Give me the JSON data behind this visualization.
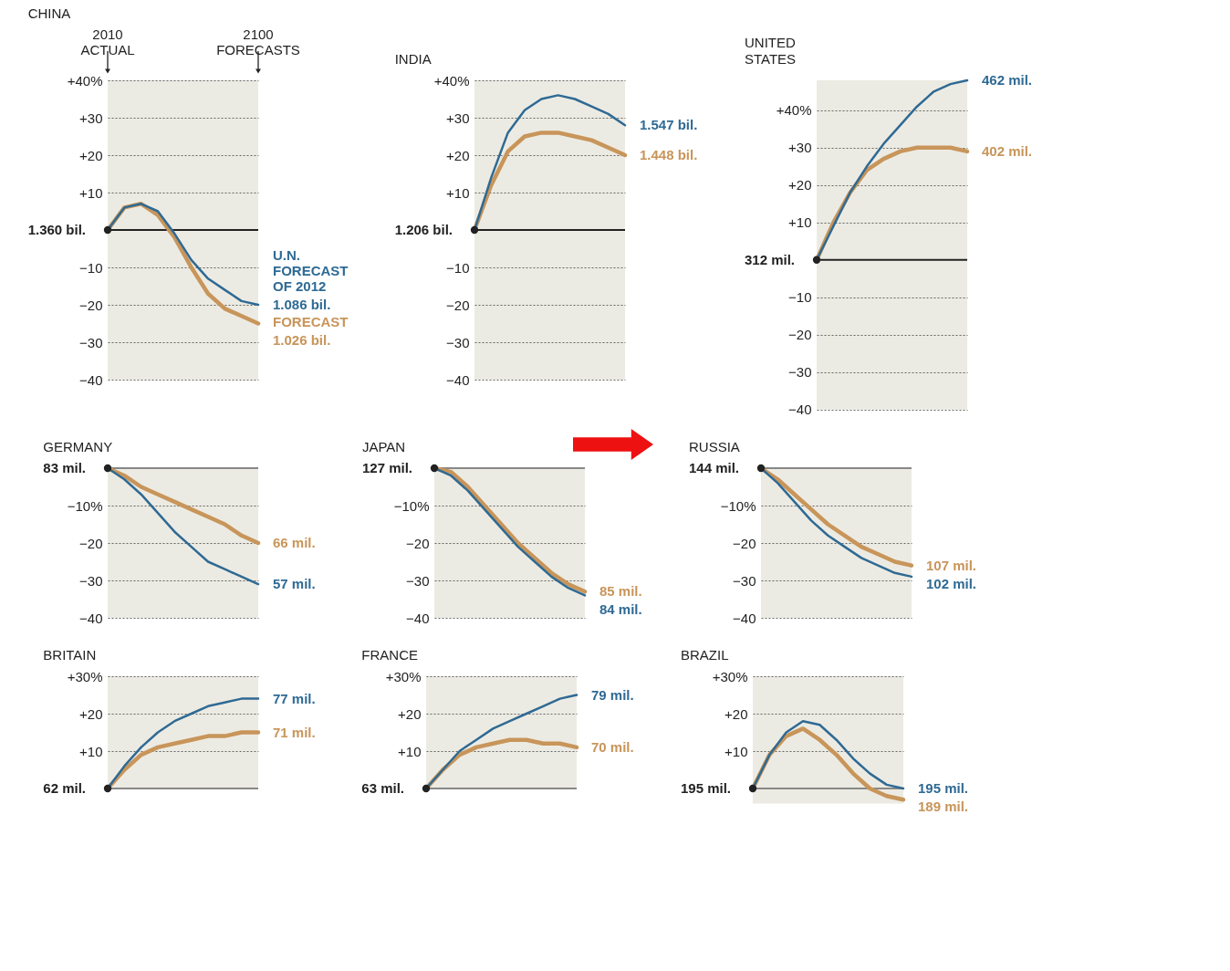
{
  "chart_data": [
    {
      "type": "line",
      "title": "CHINA",
      "categories": [
        null,
        null,
        null,
        null,
        null,
        null,
        null,
        null,
        null,
        null
      ],
      "ylim": [
        -40,
        40
      ],
      "yticks": [
        {
          "value": 40,
          "label": "+40%"
        },
        {
          "value": 30,
          "label": "+30"
        },
        {
          "value": 20,
          "label": "+20"
        },
        {
          "value": 10,
          "label": "+10"
        },
        {
          "value": -10,
          "label": "−10"
        },
        {
          "value": -20,
          "label": "−20"
        },
        {
          "value": -30,
          "label": "−30"
        },
        {
          "value": -40,
          "label": "−40"
        }
      ],
      "grid": "y",
      "tick_labels": "y",
      "legend": false,
      "series": [
        {
          "name": "U.N.\nFORECAST\nOF 2012",
          "color": "#2f6a94",
          "values": [
            0,
            6,
            7,
            5,
            -1,
            -8,
            -13,
            -16,
            -19,
            -20
          ]
        },
        {
          "name": "FORECAST",
          "color": "#c8955a",
          "values": [
            0,
            6,
            7,
            4,
            -2,
            -10,
            -17,
            -21,
            -23,
            -25
          ]
        }
      ],
      "ref_lines": [
        {
          "axis": "y",
          "value": 0,
          "color": "#222222"
        }
      ],
      "annotations": [
        "2010\nACTUAL",
        "2100\nFORECASTS",
        "1.360 bil.",
        "1.086 bil.",
        "1.026 bil."
      ]
    },
    {
      "type": "line",
      "title": "INDIA",
      "categories": [
        null,
        null,
        null,
        null,
        null,
        null,
        null,
        null,
        null,
        null
      ],
      "ylim": [
        -40,
        40
      ],
      "yticks": [
        {
          "value": 40,
          "label": "+40%"
        },
        {
          "value": 30,
          "label": "+30"
        },
        {
          "value": 20,
          "label": "+20"
        },
        {
          "value": 10,
          "label": "+10"
        },
        {
          "value": -10,
          "label": "−10"
        },
        {
          "value": -20,
          "label": "−20"
        },
        {
          "value": -30,
          "label": "−30"
        },
        {
          "value": -40,
          "label": "−40"
        }
      ],
      "grid": "y",
      "tick_labels": "y",
      "legend": false,
      "series": [
        {
          "color": "#2f6a94",
          "values": [
            0,
            14,
            26,
            32,
            35,
            36,
            35,
            33,
            31,
            28
          ]
        },
        {
          "color": "#c8955a",
          "values": [
            0,
            12,
            21,
            25,
            26,
            26,
            25,
            24,
            22,
            20
          ]
        }
      ],
      "ref_lines": [
        {
          "axis": "y",
          "value": 0,
          "color": "#222222"
        }
      ],
      "annotations": [
        "1.206 bil.",
        "1.547 bil.",
        "1.448 bil."
      ]
    },
    {
      "type": "line",
      "title": "UNITED\nSTATES",
      "categories": [
        null,
        null,
        null,
        null,
        null,
        null,
        null,
        null,
        null,
        null
      ],
      "ylim": [
        -40,
        48
      ],
      "yticks": [
        {
          "value": 40,
          "label": "+40%"
        },
        {
          "value": 30,
          "label": "+30"
        },
        {
          "value": 20,
          "label": "+20"
        },
        {
          "value": 10,
          "label": "+10"
        },
        {
          "value": -10,
          "label": "−10"
        },
        {
          "value": -20,
          "label": "−20"
        },
        {
          "value": -30,
          "label": "−30"
        },
        {
          "value": -40,
          "label": "−40"
        }
      ],
      "grid": "y",
      "tick_labels": "y",
      "legend": false,
      "series": [
        {
          "color": "#2f6a94",
          "values": [
            0,
            9,
            18,
            25,
            31,
            36,
            41,
            45,
            47,
            48
          ]
        },
        {
          "color": "#c8955a",
          "values": [
            0,
            10,
            18,
            24,
            27,
            29,
            30,
            30,
            30,
            29
          ]
        }
      ],
      "ref_lines": [
        {
          "axis": "y",
          "value": 0,
          "color": "#222222"
        }
      ],
      "annotations": [
        "312 mil.",
        "462 mil.",
        "402 mil."
      ]
    },
    {
      "type": "line",
      "title": "GERMANY",
      "categories": [
        null,
        null,
        null,
        null,
        null,
        null,
        null,
        null,
        null,
        null
      ],
      "ylim": [
        -40,
        0
      ],
      "yticks": [
        {
          "value": -10,
          "label": "−10%"
        },
        {
          "value": -20,
          "label": "−20"
        },
        {
          "value": -30,
          "label": "−30"
        },
        {
          "value": -40,
          "label": "−40"
        }
      ],
      "grid": "y",
      "tick_labels": "y",
      "legend": false,
      "series": [
        {
          "color": "#2f6a94",
          "values": [
            0,
            -3,
            -7,
            -12,
            -17,
            -21,
            -25,
            -27,
            -29,
            -31
          ]
        },
        {
          "color": "#c8955a",
          "values": [
            0,
            -2,
            -5,
            -7,
            -9,
            -11,
            -13,
            -15,
            -18,
            -20
          ]
        }
      ],
      "ref_lines": [
        {
          "axis": "y",
          "value": 0,
          "color": "#888888"
        }
      ],
      "annotations": [
        "83 mil.",
        "57 mil.",
        "66 mil."
      ]
    },
    {
      "type": "line",
      "title": "JAPAN",
      "categories": [
        null,
        null,
        null,
        null,
        null,
        null,
        null,
        null,
        null,
        null
      ],
      "ylim": [
        -40,
        0
      ],
      "yticks": [
        {
          "value": -10,
          "label": "−10%"
        },
        {
          "value": -20,
          "label": "−20"
        },
        {
          "value": -30,
          "label": "−30"
        },
        {
          "value": -40,
          "label": "−40"
        }
      ],
      "grid": "y",
      "tick_labels": "y",
      "legend": false,
      "series": [
        {
          "color": "#2f6a94",
          "values": [
            0,
            -2,
            -6,
            -11,
            -16,
            -21,
            -25,
            -29,
            -32,
            -34
          ]
        },
        {
          "color": "#c8955a",
          "values": [
            0,
            -1,
            -5,
            -10,
            -15,
            -20,
            -24,
            -28,
            -31,
            -33
          ]
        }
      ],
      "ref_lines": [
        {
          "axis": "y",
          "value": 0,
          "color": "#888888"
        }
      ],
      "annotations": [
        "127 mil.",
        "84 mil.",
        "85 mil."
      ]
    },
    {
      "type": "line",
      "title": "RUSSIA",
      "categories": [
        null,
        null,
        null,
        null,
        null,
        null,
        null,
        null,
        null,
        null
      ],
      "ylim": [
        -40,
        0
      ],
      "yticks": [
        {
          "value": -10,
          "label": "−10%"
        },
        {
          "value": -20,
          "label": "−20"
        },
        {
          "value": -30,
          "label": "−30"
        },
        {
          "value": -40,
          "label": "−40"
        }
      ],
      "grid": "y",
      "tick_labels": "y",
      "legend": false,
      "series": [
        {
          "color": "#2f6a94",
          "values": [
            0,
            -4,
            -9,
            -14,
            -18,
            -21,
            -24,
            -26,
            -28,
            -29
          ]
        },
        {
          "color": "#c8955a",
          "values": [
            0,
            -3,
            -7,
            -11,
            -15,
            -18,
            -21,
            -23,
            -25,
            -26
          ]
        }
      ],
      "ref_lines": [
        {
          "axis": "y",
          "value": 0,
          "color": "#888888"
        }
      ],
      "annotations": [
        "144 mil.",
        "102 mil.",
        "107 mil."
      ]
    },
    {
      "type": "line",
      "title": "BRITAIN",
      "categories": [
        null,
        null,
        null,
        null,
        null,
        null,
        null,
        null,
        null,
        null
      ],
      "ylim": [
        0,
        30
      ],
      "yticks": [
        {
          "value": 30,
          "label": "+30%"
        },
        {
          "value": 20,
          "label": "+20"
        },
        {
          "value": 10,
          "label": "+10"
        }
      ],
      "grid": "y",
      "tick_labels": "y",
      "legend": false,
      "series": [
        {
          "color": "#2f6a94",
          "values": [
            0,
            6,
            11,
            15,
            18,
            20,
            22,
            23,
            24,
            24
          ]
        },
        {
          "color": "#c8955a",
          "values": [
            0,
            5,
            9,
            11,
            12,
            13,
            14,
            14,
            15,
            15
          ]
        }
      ],
      "ref_lines": [
        {
          "axis": "y",
          "value": 0,
          "color": "#888888"
        }
      ],
      "annotations": [
        "62 mil.",
        "77 mil.",
        "71 mil."
      ]
    },
    {
      "type": "line",
      "title": "FRANCE",
      "categories": [
        null,
        null,
        null,
        null,
        null,
        null,
        null,
        null,
        null,
        null
      ],
      "ylim": [
        0,
        30
      ],
      "yticks": [
        {
          "value": 30,
          "label": "+30%"
        },
        {
          "value": 20,
          "label": "+20"
        },
        {
          "value": 10,
          "label": "+10"
        }
      ],
      "grid": "y",
      "tick_labels": "y",
      "legend": false,
      "series": [
        {
          "color": "#2f6a94",
          "values": [
            0,
            5,
            10,
            13,
            16,
            18,
            20,
            22,
            24,
            25
          ]
        },
        {
          "color": "#c8955a",
          "values": [
            0,
            5,
            9,
            11,
            12,
            13,
            13,
            12,
            12,
            11
          ]
        }
      ],
      "ref_lines": [
        {
          "axis": "y",
          "value": 0,
          "color": "#888888"
        }
      ],
      "annotations": [
        "63 mil.",
        "79 mil.",
        "70 mil."
      ]
    },
    {
      "type": "line",
      "title": "BRAZIL",
      "categories": [
        null,
        null,
        null,
        null,
        null,
        null,
        null,
        null,
        null,
        null
      ],
      "ylim": [
        -4,
        30
      ],
      "yticks": [
        {
          "value": 30,
          "label": "+30%"
        },
        {
          "value": 20,
          "label": "+20"
        },
        {
          "value": 10,
          "label": "+10"
        }
      ],
      "grid": "y",
      "tick_labels": "y",
      "legend": false,
      "series": [
        {
          "color": "#2f6a94",
          "values": [
            0,
            9,
            15,
            18,
            17,
            13,
            8,
            4,
            1,
            0
          ]
        },
        {
          "color": "#c8955a",
          "values": [
            0,
            9,
            14,
            16,
            13,
            9,
            4,
            0,
            -2,
            -3
          ]
        }
      ],
      "ref_lines": [
        {
          "axis": "y",
          "value": 0,
          "color": "#888888"
        }
      ],
      "annotations": [
        "195 mil.",
        "195 mil.",
        "189 mil."
      ]
    }
  ]
}
